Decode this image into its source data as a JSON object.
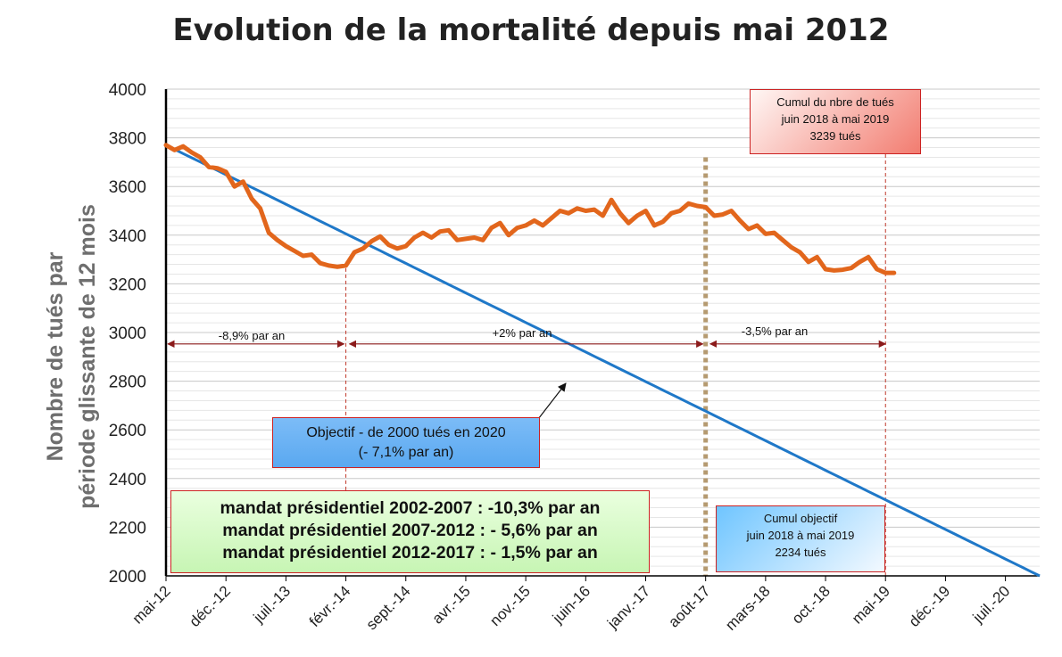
{
  "chart_data": {
    "type": "line",
    "title": "Evolution de la mortalité depuis mai 2012",
    "ylabel_line1": "Nombre de tués par",
    "ylabel_line2": "période  glissante de 12 mois",
    "ylim": [
      2000,
      4000
    ],
    "y_ticks": [
      2000,
      2200,
      2400,
      2600,
      2800,
      3000,
      3200,
      3400,
      3600,
      3800,
      4000
    ],
    "x_tick_labels": [
      "mai-12",
      "déc.-12",
      "juil.-13",
      "févr.-14",
      "sept.-14",
      "avr.-15",
      "nov.-15",
      "juin-16",
      "janv.-17",
      "août-17",
      "mars-18",
      "oct.-18",
      "mai-19",
      "déc.-19",
      "juil.-20"
    ],
    "grid": true,
    "series": [
      {
        "color": "#e2661c",
        "values": [
          3770,
          3750,
          3765,
          3740,
          3720,
          3680,
          3675,
          3660,
          3600,
          3620,
          3550,
          3510,
          3410,
          3380,
          3355,
          3335,
          3315,
          3320,
          3285,
          3275,
          3270,
          3275,
          3330,
          3345,
          3375,
          3395,
          3360,
          3345,
          3355,
          3390,
          3410,
          3390,
          3415,
          3420,
          3380,
          3385,
          3390,
          3380,
          3430,
          3450,
          3400,
          3430,
          3440,
          3460,
          3440,
          3470,
          3500,
          3490,
          3510,
          3500,
          3505,
          3480,
          3545,
          3490,
          3450,
          3480,
          3500,
          3440,
          3455,
          3490,
          3500,
          3530,
          3520,
          3515,
          3480,
          3485,
          3500,
          3460,
          3425,
          3440,
          3405,
          3410,
          3380,
          3350,
          3330,
          3290,
          3310,
          3260,
          3255,
          3258,
          3265,
          3290,
          3310,
          3260,
          3245,
          3245
        ]
      },
      {
        "color": "#1f78c8",
        "start": 3770,
        "end": 2000,
        "n_points": 103
      }
    ],
    "annotations": {
      "rate_1": "-8,9% par an",
      "rate_2": "+2% par an",
      "rate_3": "-3,5% par an",
      "objectif_line1": "Objectif - de 2000 tués en 2020",
      "objectif_line2": "(- 7,1% par an)",
      "mandat_1": "mandat présidentiel 2002-2007 : -10,3% par an",
      "mandat_2": "mandat présidentiel 2007-2012 : - 5,6% par an",
      "mandat_3": "mandat présidentiel 2012-2017 : - 1,5% par an",
      "cumul_line1": "Cumul du nbre de tués",
      "cumul_line2": "juin 2018 à mai 2019",
      "cumul_line3": "3239 tués",
      "cumul_obj_line1": "Cumul objectif",
      "cumul_obj_line2": "juin 2018 à mai 2019",
      "cumul_obj_line3": "2234 tués"
    },
    "markers": {
      "month_index_fevr14": 21,
      "month_index_aout17": 63,
      "month_index_mai19": 84
    }
  }
}
